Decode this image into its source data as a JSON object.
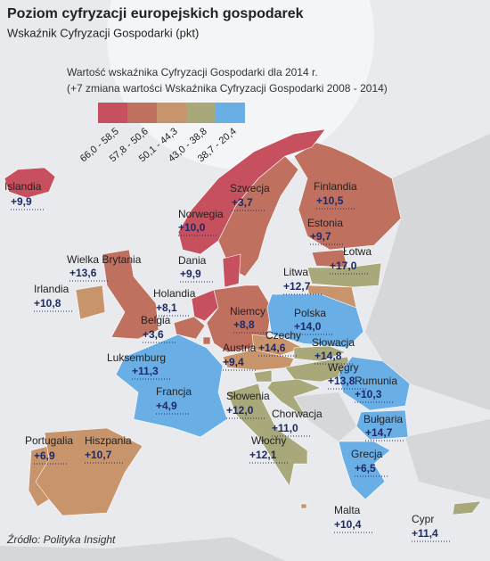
{
  "header": {
    "title": "Poziom cyfryzacji europejskich gospodarek",
    "subtitle": "Wskaźnik Cyfryzacji Gospodarki (pkt)"
  },
  "legend": {
    "description": [
      "Wartość wskaźnika Cyfryzacji Gospodarki dla 2014 r.",
      "(+7 zmiana wartości Wskaźnika Cyfryzacji Gospodarki 2008 - 2014)"
    ],
    "items": [
      {
        "range": "66,0 - 58,5",
        "color": "#c7505f"
      },
      {
        "range": "57,8 - 50,6",
        "color": "#c0705f"
      },
      {
        "range": "50,1 - 44,3",
        "color": "#c8946c"
      },
      {
        "range": "43,0 - 38,8",
        "color": "#a8a87a"
      },
      {
        "range": "38,7 - 20,4",
        "color": "#6aaee6"
      }
    ]
  },
  "countries": [
    {
      "name": "Islandia",
      "change": "+9,9",
      "color": "#c7505f"
    },
    {
      "name": "Szwecja",
      "change": "+3,7",
      "color": "#c0705f"
    },
    {
      "name": "Finlandia",
      "change": "+10,5",
      "color": "#c0705f"
    },
    {
      "name": "Norwegia",
      "change": "+10,0",
      "color": "#c7505f"
    },
    {
      "name": "Estonia",
      "change": "+9,7",
      "color": "#c0705f"
    },
    {
      "name": "Łotwa",
      "change": "+17,0",
      "color": "#a8a87a"
    },
    {
      "name": "Wielka Brytania",
      "change": "+13,6",
      "color": "#c0705f"
    },
    {
      "name": "Dania",
      "change": "+9,9",
      "color": "#c7505f"
    },
    {
      "name": "Litwa",
      "change": "+12,7",
      "color": "#c8946c"
    },
    {
      "name": "Irlandia",
      "change": "+10,8",
      "color": "#c8946c"
    },
    {
      "name": "Holandia",
      "change": "+8,1",
      "color": "#c7505f"
    },
    {
      "name": "Niemcy",
      "change": "+8,8",
      "color": "#c0705f"
    },
    {
      "name": "Polska",
      "change": "+14,0",
      "color": "#6aaee6"
    },
    {
      "name": "Belgia",
      "change": "+3,6",
      "color": "#c0705f"
    },
    {
      "name": "Czechy",
      "change": "+14,6",
      "color": "#c8946c"
    },
    {
      "name": "Słowacja",
      "change": "+14,8",
      "color": "#a8a87a"
    },
    {
      "name": "Austria",
      "change": "+9,4",
      "color": "#c8946c"
    },
    {
      "name": "Luksemburg",
      "change": "+11,3",
      "color": "#c0705f"
    },
    {
      "name": "Węgry",
      "change": "+13,8",
      "color": "#a8a87a"
    },
    {
      "name": "Rumunia",
      "change": "+10,3",
      "color": "#6aaee6"
    },
    {
      "name": "Francja",
      "change": "+4,9",
      "color": "#6aaee6"
    },
    {
      "name": "Słowenia",
      "change": "+12,0",
      "color": "#a8a87a"
    },
    {
      "name": "Chorwacja",
      "change": "+11,0",
      "color": "#a8a87a"
    },
    {
      "name": "Bułgaria",
      "change": "+14,7",
      "color": "#6aaee6"
    },
    {
      "name": "Portugalia",
      "change": "+6,9",
      "color": "#c8946c"
    },
    {
      "name": "Hiszpania",
      "change": "+10,7",
      "color": "#c8946c"
    },
    {
      "name": "Włochy",
      "change": "+12,1",
      "color": "#a8a87a"
    },
    {
      "name": "Grecja",
      "change": "+6,5",
      "color": "#6aaee6"
    },
    {
      "name": "Malta",
      "change": "+10,4",
      "color": "#c8946c"
    },
    {
      "name": "Cypr",
      "change": "+11,4",
      "color": "#a8a87a"
    }
  ],
  "source": "Źródło: Polityka Insight"
}
